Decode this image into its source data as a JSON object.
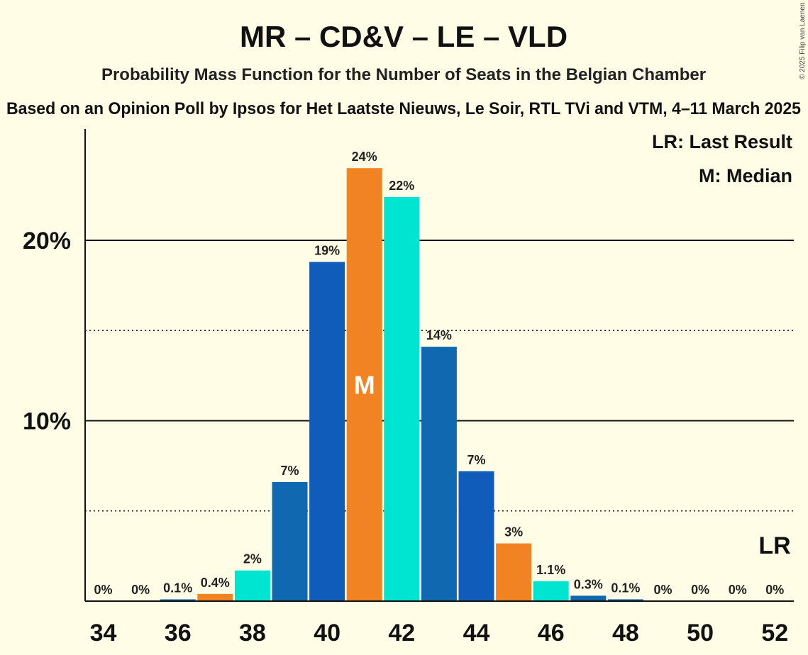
{
  "title": "MR – CD&V – LE – VLD",
  "subtitle": "Probability Mass Function for the Number of Seats in the Belgian Chamber",
  "source": "Based on an Opinion Poll by Ipsos for Het Laatste Nieuws, Le Soir, RTL TVi and VTM, 4–11 March 2025",
  "copyright": "© 2025 Filip van Laenen",
  "legend": {
    "last_result": "LR: Last Result",
    "median": "M: Median"
  },
  "last_result_marker": "LR",
  "median_marker": "M",
  "colors": {
    "background": "#fffde6",
    "orange": "#f28322",
    "cyan": "#00e5d1",
    "blue": "#0f5cba",
    "steel": "#1068b0"
  },
  "chart_data": {
    "type": "bar",
    "x": [
      34,
      35,
      36,
      37,
      38,
      39,
      40,
      41,
      42,
      43,
      44,
      45,
      46,
      47,
      48,
      49,
      50,
      51,
      52
    ],
    "values": [
      0,
      0,
      0.1,
      0.4,
      1.7,
      6.6,
      18.8,
      24.0,
      22.4,
      14.1,
      7.2,
      3.2,
      1.1,
      0.3,
      0.1,
      0,
      0,
      0,
      0
    ],
    "labels": [
      "0%",
      "0%",
      "0.1%",
      "0.4%",
      "2%",
      "7%",
      "19%",
      "24%",
      "22%",
      "14%",
      "7%",
      "3%",
      "1.1%",
      "0.3%",
      "0.1%",
      "0%",
      "0%",
      "0%",
      "0%"
    ],
    "bar_colors": [
      "#1068b0",
      "#0f5cba",
      "#1068b0",
      "#f28322",
      "#00e5d1",
      "#1068b0",
      "#0f5cba",
      "#f28322",
      "#00e5d1",
      "#1068b0",
      "#0f5cba",
      "#f28322",
      "#00e5d1",
      "#1068b0",
      "#0f5cba",
      "#f28322",
      "#00e5d1",
      "#1068b0",
      "#0f5cba"
    ],
    "x_ticks": [
      34,
      36,
      38,
      40,
      42,
      44,
      46,
      48,
      50,
      52
    ],
    "y_ticks": [
      10,
      20
    ],
    "y_tick_labels": [
      "10%",
      "20%"
    ],
    "y_dotted_lines": [
      5,
      15
    ],
    "ylim": [
      0,
      26
    ],
    "median": 41,
    "last_result": 52
  }
}
